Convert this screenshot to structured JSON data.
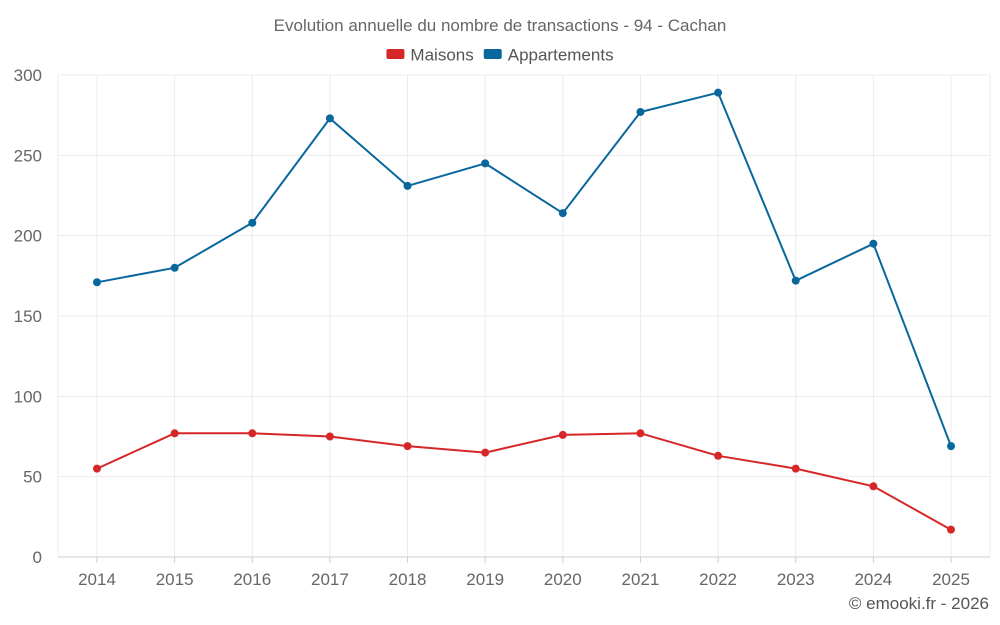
{
  "chart_data": {
    "type": "line",
    "title": "Evolution annuelle du nombre de transactions - 94 - Cachan",
    "xlabel": "",
    "ylabel": "",
    "ylim": [
      0,
      300
    ],
    "yticks": [
      0,
      50,
      100,
      150,
      200,
      250,
      300
    ],
    "categories": [
      "2014",
      "2015",
      "2016",
      "2017",
      "2018",
      "2019",
      "2020",
      "2021",
      "2022",
      "2023",
      "2024",
      "2025"
    ],
    "series": [
      {
        "name": "Maisons",
        "color": "#d62728",
        "values": [
          55,
          77,
          77,
          75,
          69,
          65,
          76,
          77,
          63,
          55,
          44,
          17
        ]
      },
      {
        "name": "Appartements",
        "color": "#08679c",
        "values": [
          171,
          180,
          208,
          273,
          231,
          245,
          214,
          277,
          289,
          172,
          195,
          69
        ]
      }
    ],
    "grid": true,
    "legend_position": "top-center"
  },
  "credit": "© emooki.fr - 2026"
}
